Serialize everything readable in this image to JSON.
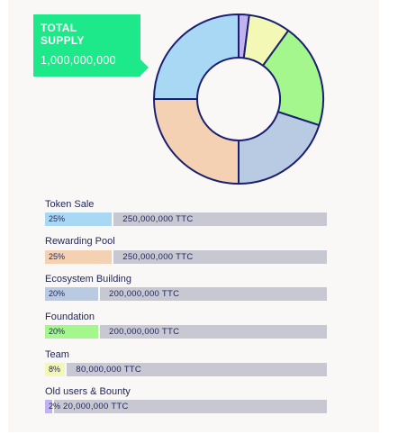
{
  "supply": {
    "label": "TOTAL SUPPLY",
    "value": "1,000,000,000"
  },
  "colors": {
    "outline": "#1a1f72",
    "accent": "#1ee98a",
    "track": "#c7c8d2"
  },
  "chart_data": {
    "type": "pie",
    "style": "donut",
    "slices": [
      {
        "name": "Token Sale",
        "value": 25,
        "color": "#a9d8f4"
      },
      {
        "name": "Rewarding Pool",
        "value": 25,
        "color": "#f4d1b3"
      },
      {
        "name": "Ecosystem Building",
        "value": 20,
        "color": "#b9cbe3"
      },
      {
        "name": "Foundation",
        "value": 20,
        "color": "#a3f78d"
      },
      {
        "name": "Team",
        "value": 8,
        "color": "#f4f8b5"
      },
      {
        "name": "Old users & Bounty",
        "value": 2,
        "color": "#c1b3ef"
      }
    ]
  },
  "allocations": [
    {
      "label": "Token Sale",
      "pct_text": "25%",
      "amount": "250,000,000 TTC",
      "pct": 25,
      "color": "#a9d8f4"
    },
    {
      "label": "Rewarding Pool",
      "pct_text": "25%",
      "amount": "250,000,000 TTC",
      "pct": 25,
      "color": "#f4d1b3"
    },
    {
      "label": "Ecosystem Building",
      "pct_text": "20%",
      "amount": "200,000,000 TTC",
      "pct": 20,
      "color": "#b9cbe3"
    },
    {
      "label": "Foundation",
      "pct_text": "20%",
      "amount": "200,000,000 TTC",
      "pct": 20,
      "color": "#a3f78d"
    },
    {
      "label": "Team",
      "pct_text": "8%",
      "amount": "80,000,000 TTC",
      "pct": 8,
      "color": "#f4f8b5"
    },
    {
      "label": "Old users & Bounty",
      "pct_text": "2%",
      "amount": "20,000,000 TTC",
      "pct": 2,
      "color": "#c1b3ef"
    }
  ]
}
